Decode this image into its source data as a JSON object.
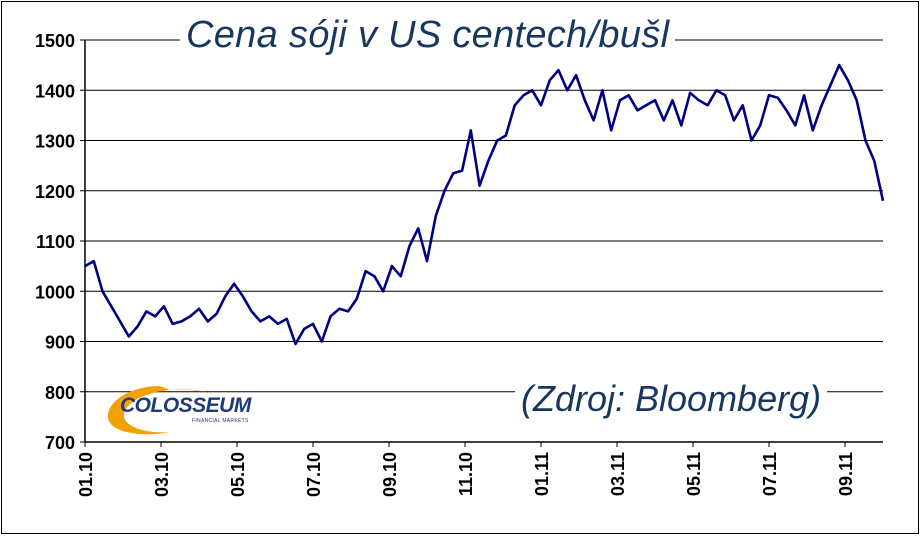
{
  "chart_data": {
    "type": "line",
    "title": "Cena sóji v US centech/bušl",
    "annotation": "(Zdroj: Bloomberg)",
    "ylim": [
      700,
      1500
    ],
    "yticks": [
      700,
      800,
      900,
      1000,
      1100,
      1200,
      1300,
      1400,
      1500
    ],
    "x_tick_labels": [
      "01.10",
      "03.10",
      "05.10",
      "07.10",
      "09.10",
      "11.10",
      "01.11",
      "03.11",
      "05.11",
      "07.11",
      "09.11"
    ],
    "grid": true,
    "line_color": "#000080",
    "series": [
      {
        "x": [
          "2010-01-01",
          "2010-01-08",
          "2010-01-15",
          "2010-01-22",
          "2010-01-29",
          "2010-02-05",
          "2010-02-12",
          "2010-02-19",
          "2010-02-26",
          "2010-03-05",
          "2010-03-12",
          "2010-03-19",
          "2010-03-26",
          "2010-04-02",
          "2010-04-09",
          "2010-04-16",
          "2010-04-23",
          "2010-04-30",
          "2010-05-07",
          "2010-05-14",
          "2010-05-21",
          "2010-05-28",
          "2010-06-04",
          "2010-06-11",
          "2010-06-18",
          "2010-06-25",
          "2010-07-02",
          "2010-07-09",
          "2010-07-16",
          "2010-07-23",
          "2010-07-30",
          "2010-08-06",
          "2010-08-13",
          "2010-08-20",
          "2010-08-27",
          "2010-09-03",
          "2010-09-10",
          "2010-09-17",
          "2010-09-24",
          "2010-10-01",
          "2010-10-08",
          "2010-10-15",
          "2010-10-22",
          "2010-10-29",
          "2010-11-05",
          "2010-11-12",
          "2010-11-19",
          "2010-11-26",
          "2010-12-03",
          "2010-12-10",
          "2010-12-17",
          "2010-12-24",
          "2010-12-31",
          "2011-01-07",
          "2011-01-14",
          "2011-01-21",
          "2011-01-28",
          "2011-02-04",
          "2011-02-11",
          "2011-02-18",
          "2011-02-25",
          "2011-03-04",
          "2011-03-11",
          "2011-03-18",
          "2011-03-25",
          "2011-04-01",
          "2011-04-08",
          "2011-04-15",
          "2011-04-22",
          "2011-04-29",
          "2011-05-06",
          "2011-05-13",
          "2011-05-20",
          "2011-05-27",
          "2011-06-03",
          "2011-06-10",
          "2011-06-17",
          "2011-06-24",
          "2011-07-01",
          "2011-07-08",
          "2011-07-15",
          "2011-07-22",
          "2011-07-29",
          "2011-08-05",
          "2011-08-12",
          "2011-08-19",
          "2011-08-26",
          "2011-09-02",
          "2011-09-09",
          "2011-09-16",
          "2011-09-23",
          "2011-09-30"
        ],
        "y": [
          1050,
          1060,
          1000,
          970,
          940,
          910,
          930,
          960,
          950,
          970,
          935,
          940,
          950,
          965,
          940,
          955,
          990,
          1015,
          990,
          960,
          940,
          950,
          935,
          945,
          895,
          925,
          935,
          900,
          950,
          965,
          960,
          985,
          1040,
          1030,
          1000,
          1050,
          1030,
          1090,
          1125,
          1060,
          1150,
          1200,
          1235,
          1240,
          1320,
          1210,
          1260,
          1300,
          1310,
          1370,
          1390,
          1400,
          1370,
          1420,
          1440,
          1400,
          1430,
          1380,
          1340,
          1400,
          1320,
          1380,
          1390,
          1360,
          1370,
          1380,
          1340,
          1380,
          1330,
          1395,
          1380,
          1370,
          1400,
          1390,
          1340,
          1370,
          1300,
          1330,
          1390,
          1385,
          1360,
          1330,
          1390,
          1320,
          1370,
          1410,
          1450,
          1420,
          1380,
          1300,
          1260,
          1180
        ]
      }
    ]
  },
  "logo": {
    "name": "colosseum-logo",
    "text": "COLOSSEUM",
    "subtext": "FINANCIAL MARKETS"
  }
}
